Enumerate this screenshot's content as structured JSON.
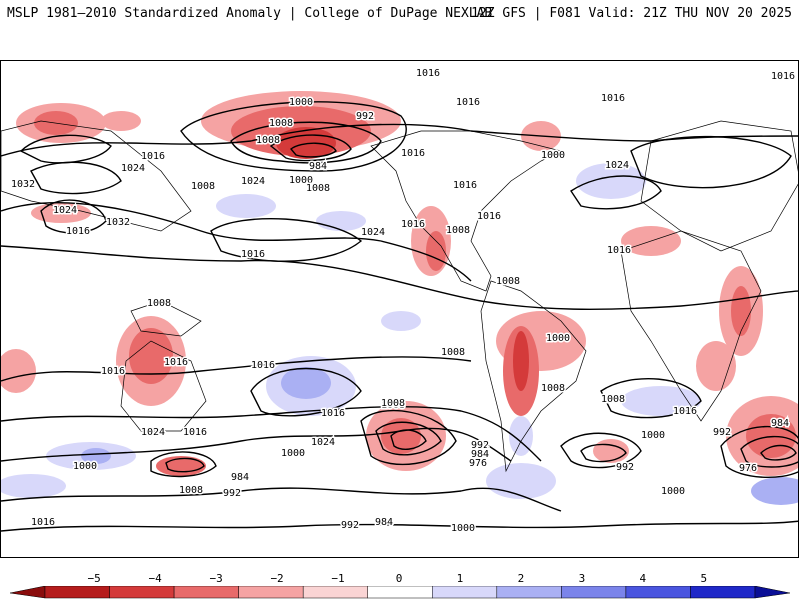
{
  "header": {
    "title_left": "MSLP 1981–2010 Standardized Anomaly | College of DuPage NEXLAB",
    "title_right": "12Z GFS | F081 Valid: 21Z THU NOV 20 2025"
  },
  "map": {
    "contour_interval_hpa": 8,
    "contour_labels": [
      "1016",
      "1016",
      "1016",
      "1016",
      "1008",
      "1000",
      "992",
      "984",
      "1000",
      "1008",
      "1016",
      "1024",
      "1032",
      "1024",
      "1016",
      "1032",
      "1008",
      "1024",
      "1016",
      "1024",
      "1016",
      "1016",
      "1008",
      "1000",
      "1024",
      "1008",
      "1016",
      "1016",
      "1016",
      "1008",
      "1008",
      "1016",
      "1000",
      "1008",
      "1008",
      "1008",
      "1016",
      "1016",
      "1008",
      "1016",
      "1024",
      "1016",
      "1024",
      "1016",
      "1000",
      "992",
      "976",
      "984",
      "1008",
      "1000",
      "984",
      "992",
      "984",
      "992",
      "1008",
      "1000",
      "1000",
      "992",
      "984",
      "992",
      "976",
      "1008",
      "1000",
      "1016",
      "1016"
    ]
  },
  "colorbar": {
    "ticks": [
      "−5",
      "−4",
      "−3",
      "−2",
      "−1",
      "0",
      "1",
      "2",
      "3",
      "4",
      "5"
    ],
    "colors": [
      "#8a0c0c",
      "#b51c1c",
      "#d43a3a",
      "#e86a6a",
      "#f5a3a3",
      "#fad4d4",
      "#ffffff",
      "#d8d8fa",
      "#aab0f3",
      "#7b84ea",
      "#4a55df",
      "#1f28c8",
      "#0a0f96"
    ]
  }
}
